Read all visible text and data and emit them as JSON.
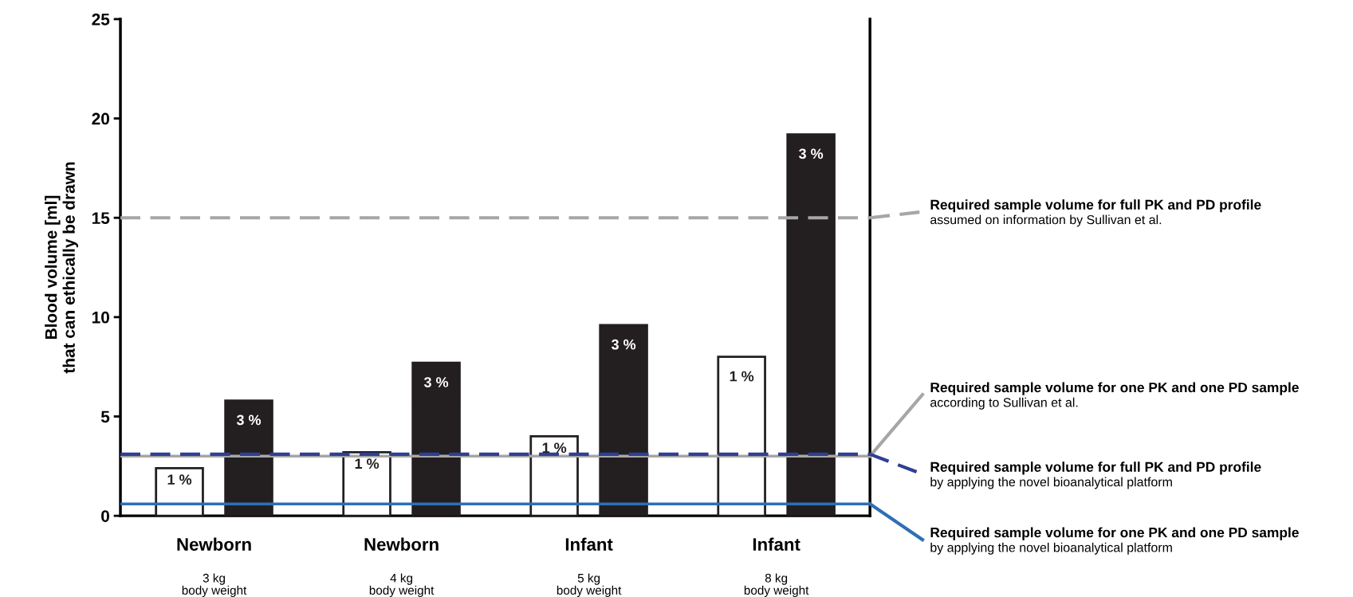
{
  "chart_data": {
    "type": "bar",
    "ylabel": "Blood volume [ml]\nthat can ethically be drawn",
    "categories": [
      "Newborn\n3 kg\nbody weight",
      "Newborn\n4 kg\nbody weight",
      "Infant\n5 kg\nbody weight",
      "Infant\n8 kg\nbody weight"
    ],
    "series": [
      {
        "name": "1 %",
        "color": "#ffffff",
        "values": [
          2.4,
          3.2,
          4.0,
          8.0
        ]
      },
      {
        "name": "3 %",
        "color": "#231f20",
        "values": [
          5.8,
          7.7,
          9.6,
          19.2
        ]
      }
    ],
    "ylim": [
      0,
      25
    ],
    "yticks": [
      0,
      5,
      10,
      15,
      20,
      25
    ],
    "grid": false,
    "ref_lines": [
      {
        "axis": "y",
        "value": 15,
        "label": "Required sample volume for full PK and PD profile\nassumed on information by Sullivan et al.",
        "color": "#a6a6a6",
        "line_style": "dashed"
      },
      {
        "axis": "y",
        "value": 3.0,
        "label": "Required sample volume for one PK and one PD sample\naccording to Sullivan et al.",
        "color": "#a6a6a6",
        "line_style": "solid"
      },
      {
        "axis": "y",
        "value": 3.1,
        "label": "Required sample volume for full PK and PD profile\nby applying the novel bioanalytical platform",
        "color": "#2e3f94",
        "line_style": "dashed"
      },
      {
        "axis": "y",
        "value": 0.6,
        "label": "Required sample volume for one PK and one PD sample\nby applying the novel bioanalytical platform",
        "color": "#2e6fb5",
        "line_style": "solid"
      }
    ]
  }
}
